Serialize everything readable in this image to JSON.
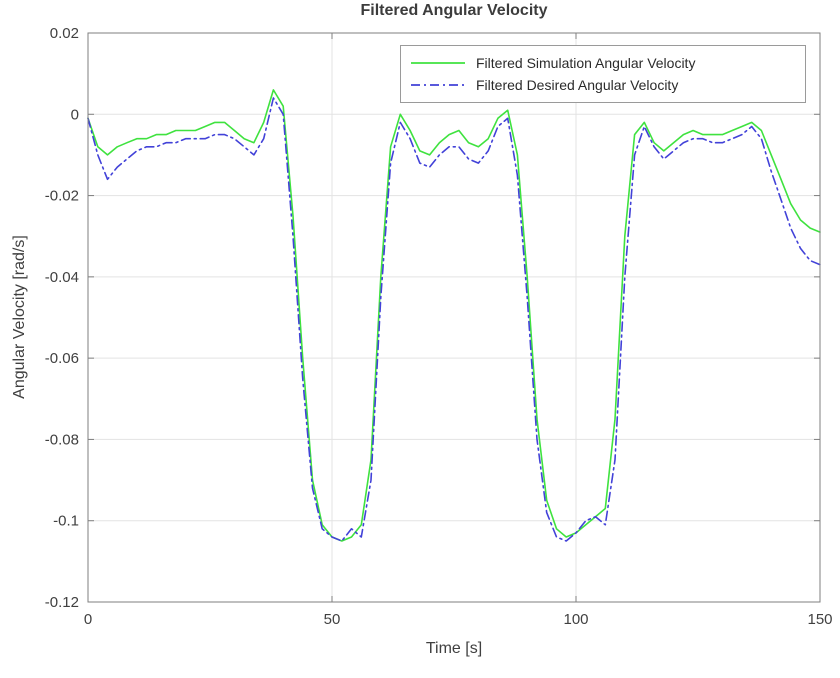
{
  "chart_data": {
    "type": "line",
    "title": "Filtered Angular Velocity",
    "xlabel": "Time [s]",
    "ylabel": "Angular Velocity [rad/s]",
    "xlim": [
      0,
      150
    ],
    "ylim": [
      -0.12,
      0.02
    ],
    "grid": true,
    "legend_position": "top-right",
    "x_ticks": {
      "values": [
        0,
        50,
        100,
        150
      ],
      "labels": [
        "0",
        "50",
        "100",
        "150"
      ]
    },
    "y_ticks": {
      "values": [
        0.02,
        0,
        -0.02,
        -0.04,
        -0.06,
        -0.08,
        -0.1,
        -0.12
      ],
      "labels": [
        "0.02",
        "0",
        "-0.02",
        "-0.04",
        "-0.06",
        "-0.08",
        "-0.1",
        "-0.12"
      ]
    },
    "x": [
      0,
      2,
      4,
      6,
      8,
      10,
      12,
      14,
      16,
      18,
      20,
      22,
      24,
      26,
      28,
      30,
      32,
      34,
      36,
      38,
      40,
      42,
      44,
      46,
      48,
      50,
      52,
      54,
      56,
      58,
      60,
      62,
      64,
      66,
      68,
      70,
      72,
      74,
      76,
      78,
      80,
      82,
      84,
      86,
      88,
      90,
      92,
      94,
      96,
      98,
      100,
      102,
      104,
      106,
      108,
      110,
      112,
      114,
      116,
      118,
      120,
      122,
      124,
      126,
      128,
      130,
      132,
      134,
      136,
      138,
      140,
      142,
      144,
      146,
      148,
      150
    ],
    "series": [
      {
        "name": "Filtered Simulation Angular Velocity",
        "color": "#3fe23f",
        "line_style": "solid",
        "values": [
          -0.001,
          -0.008,
          -0.01,
          -0.008,
          -0.007,
          -0.006,
          -0.006,
          -0.005,
          -0.005,
          -0.004,
          -0.004,
          -0.004,
          -0.003,
          -0.002,
          -0.002,
          -0.004,
          -0.006,
          -0.007,
          -0.002,
          0.006,
          0.002,
          -0.025,
          -0.06,
          -0.09,
          -0.101,
          -0.104,
          -0.105,
          -0.104,
          -0.101,
          -0.085,
          -0.04,
          -0.008,
          0.0,
          -0.004,
          -0.009,
          -0.01,
          -0.007,
          -0.005,
          -0.004,
          -0.007,
          -0.008,
          -0.006,
          -0.001,
          0.001,
          -0.01,
          -0.04,
          -0.075,
          -0.095,
          -0.102,
          -0.104,
          -0.103,
          -0.101,
          -0.099,
          -0.097,
          -0.075,
          -0.03,
          -0.005,
          -0.002,
          -0.007,
          -0.009,
          -0.007,
          -0.005,
          -0.004,
          -0.005,
          -0.005,
          -0.005,
          -0.004,
          -0.003,
          -0.002,
          -0.004,
          -0.01,
          -0.016,
          -0.022,
          -0.026,
          -0.028,
          -0.029
        ]
      },
      {
        "name": "Filtered Desired Angular Velocity",
        "color": "#4242d8",
        "line_style": "dash-dot",
        "values": [
          -0.001,
          -0.01,
          -0.016,
          -0.013,
          -0.011,
          -0.009,
          -0.008,
          -0.008,
          -0.007,
          -0.007,
          -0.006,
          -0.006,
          -0.006,
          -0.005,
          -0.005,
          -0.006,
          -0.008,
          -0.01,
          -0.006,
          0.004,
          0.0,
          -0.03,
          -0.065,
          -0.092,
          -0.102,
          -0.104,
          -0.105,
          -0.102,
          -0.104,
          -0.09,
          -0.045,
          -0.012,
          -0.002,
          -0.006,
          -0.012,
          -0.013,
          -0.01,
          -0.008,
          -0.008,
          -0.011,
          -0.012,
          -0.009,
          -0.003,
          -0.001,
          -0.015,
          -0.045,
          -0.08,
          -0.098,
          -0.104,
          -0.105,
          -0.103,
          -0.1,
          -0.099,
          -0.101,
          -0.085,
          -0.04,
          -0.01,
          -0.003,
          -0.008,
          -0.011,
          -0.009,
          -0.007,
          -0.006,
          -0.006,
          -0.007,
          -0.007,
          -0.006,
          -0.005,
          -0.003,
          -0.006,
          -0.014,
          -0.021,
          -0.028,
          -0.033,
          -0.036,
          -0.037
        ]
      }
    ]
  }
}
